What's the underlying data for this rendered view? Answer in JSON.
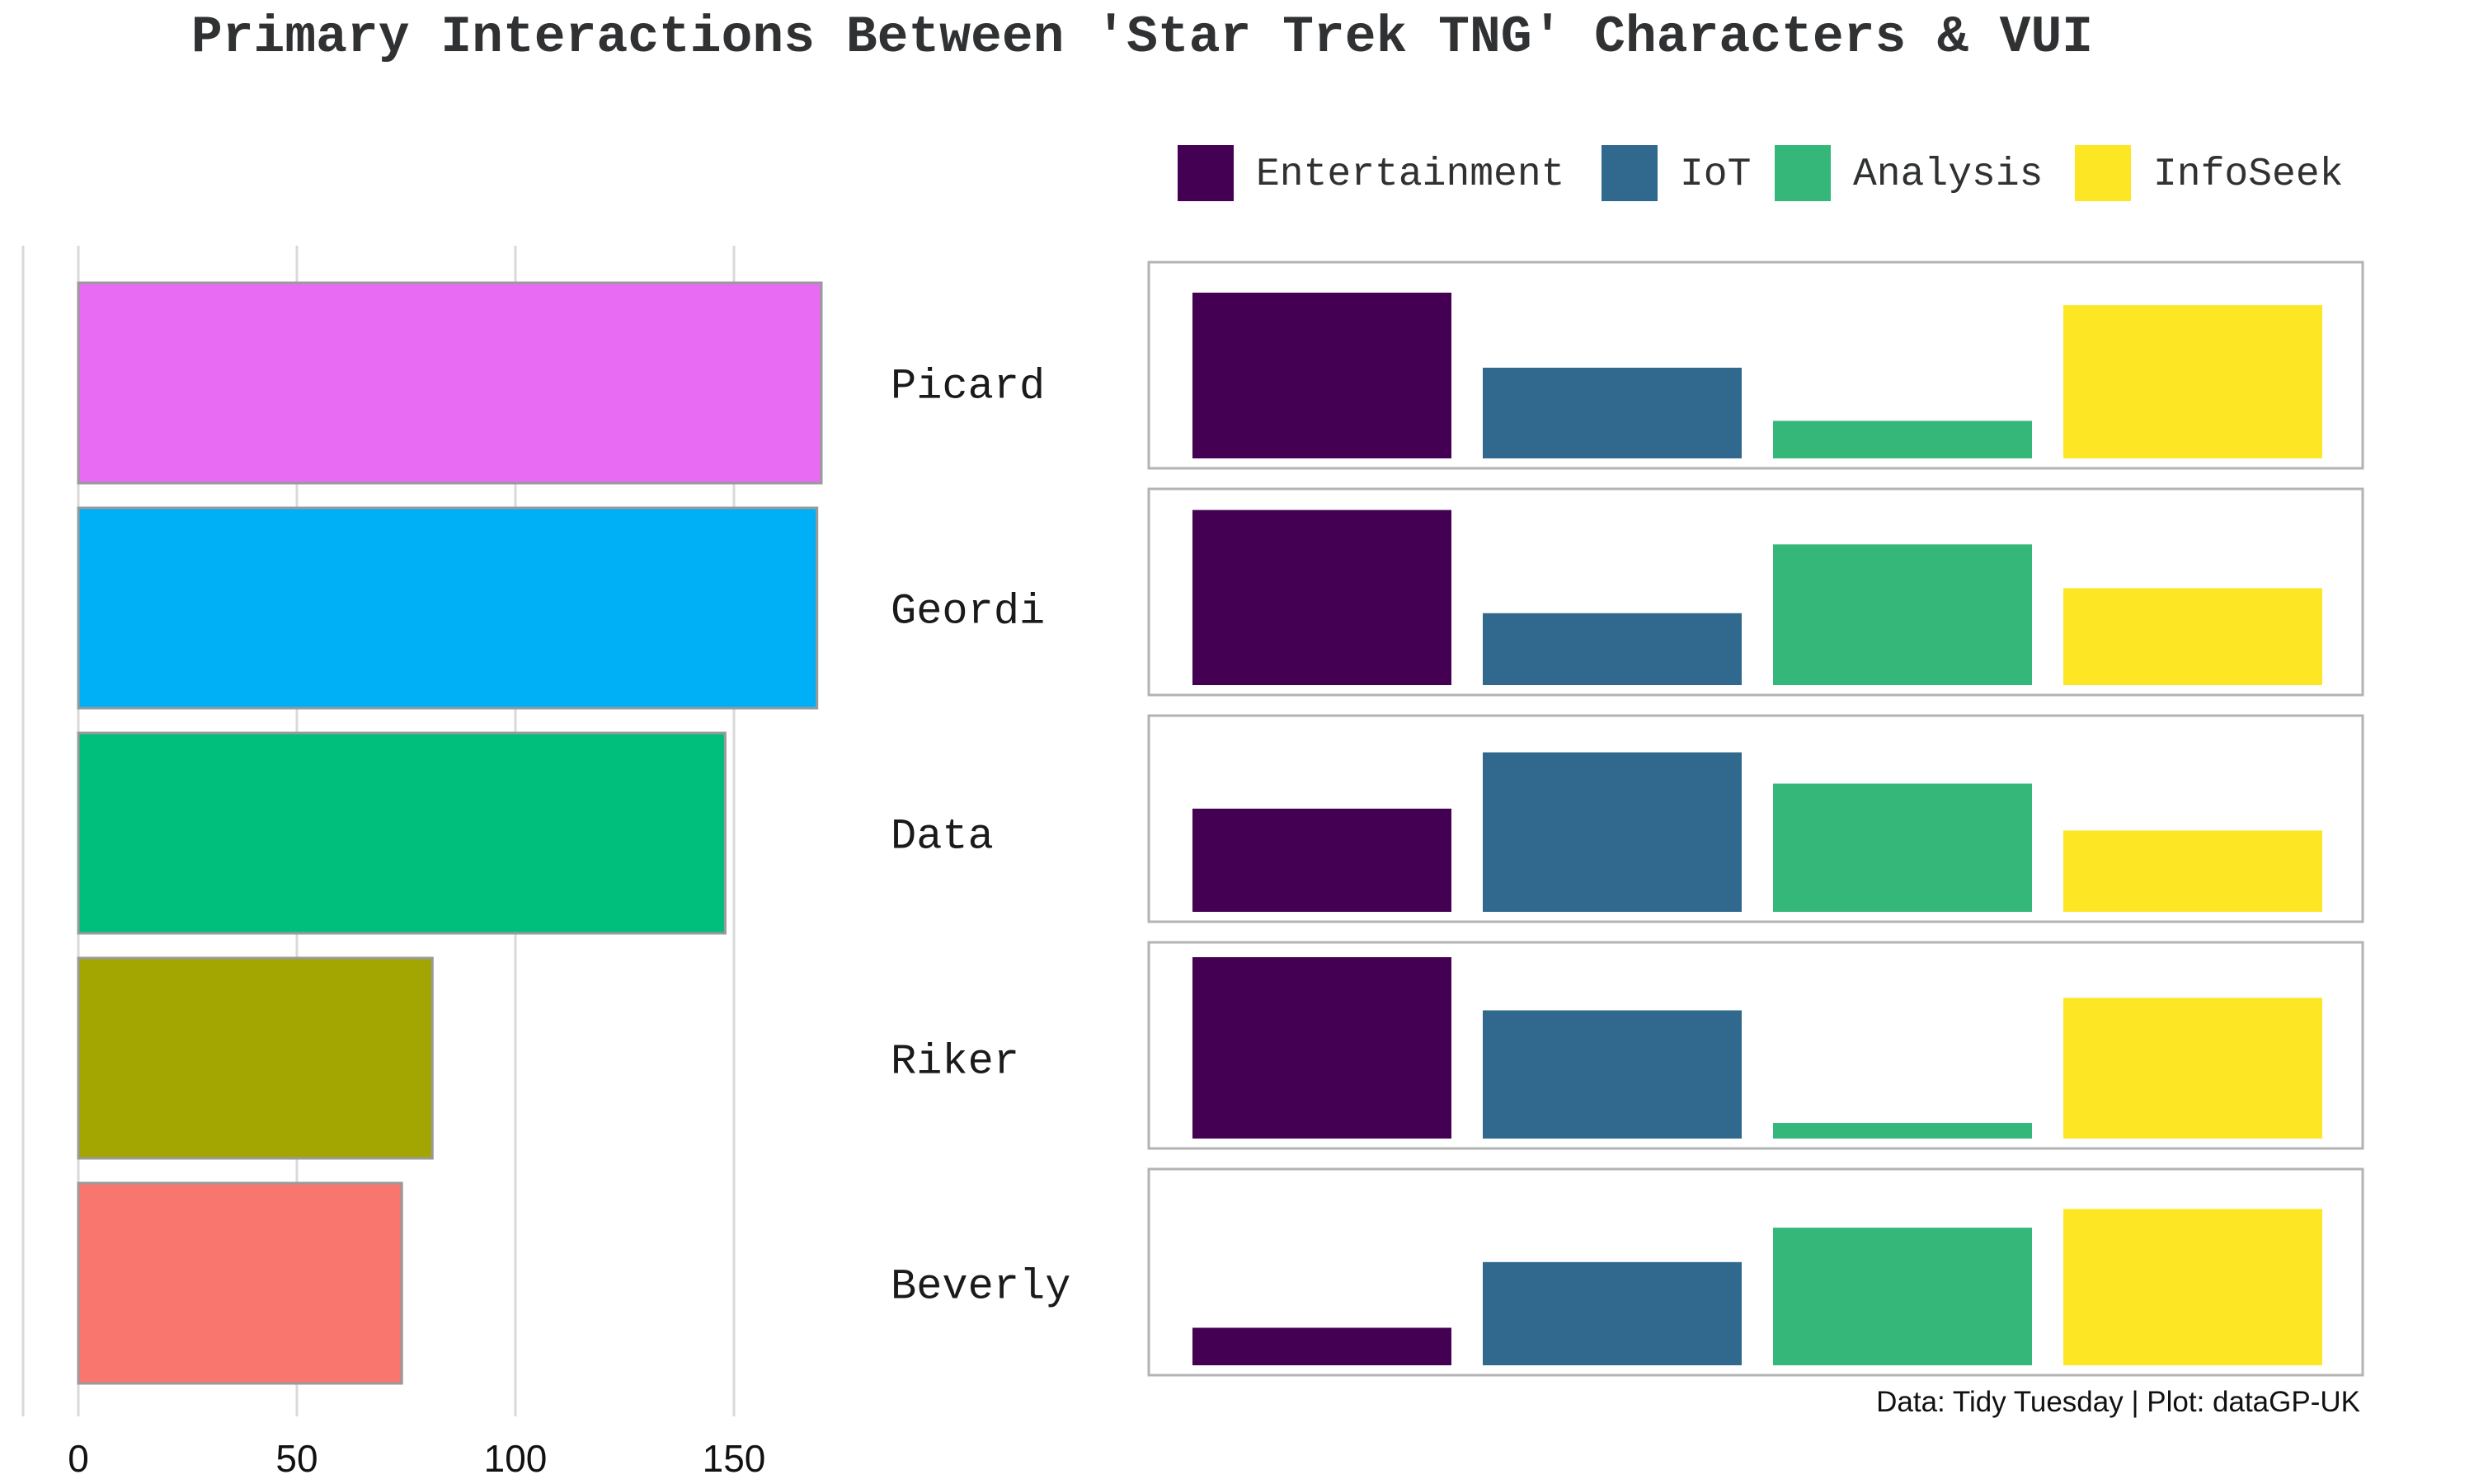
{
  "title": "Primary Interactions Between 'Star Trek TNG' Characters & VUI",
  "caption": "Data: Tidy Tuesday | Plot: dataGP-UK",
  "colors": {
    "Entertainment": "#440154",
    "IoT": "#31688e",
    "Analysis": "#35b779",
    "InfoSeek": "#fde725",
    "Picard": "#e76bf3",
    "Geordi": "#00b0f6",
    "Data": "#00bf7d",
    "Riker": "#a3a500",
    "Beverly": "#f8766d"
  },
  "chart_data": [
    {
      "type": "bar",
      "orientation": "horizontal",
      "categories": [
        "Picard",
        "Geordi",
        "Data",
        "Riker",
        "Beverly"
      ],
      "values": [
        170,
        169,
        148,
        81,
        74
      ],
      "xlim": [
        0,
        175
      ],
      "xticks": [
        0,
        50,
        100,
        150
      ],
      "grid": true
    },
    {
      "type": "bar",
      "facets": [
        "Picard",
        "Geordi",
        "Data",
        "Riker",
        "Beverly"
      ],
      "categories": [
        "Entertainment",
        "IoT",
        "Analysis",
        "InfoSeek"
      ],
      "legend_position": "top-right",
      "series": [
        {
          "name": "Picard",
          "values": [
            53,
            29,
            12,
            49
          ]
        },
        {
          "name": "Geordi",
          "values": [
            56,
            23,
            45,
            31
          ]
        },
        {
          "name": "Data",
          "values": [
            33,
            51,
            41,
            26
          ]
        },
        {
          "name": "Riker",
          "values": [
            58,
            41,
            5,
            45
          ]
        },
        {
          "name": "Beverly",
          "values": [
            12,
            33,
            44,
            50
          ]
        }
      ]
    }
  ]
}
